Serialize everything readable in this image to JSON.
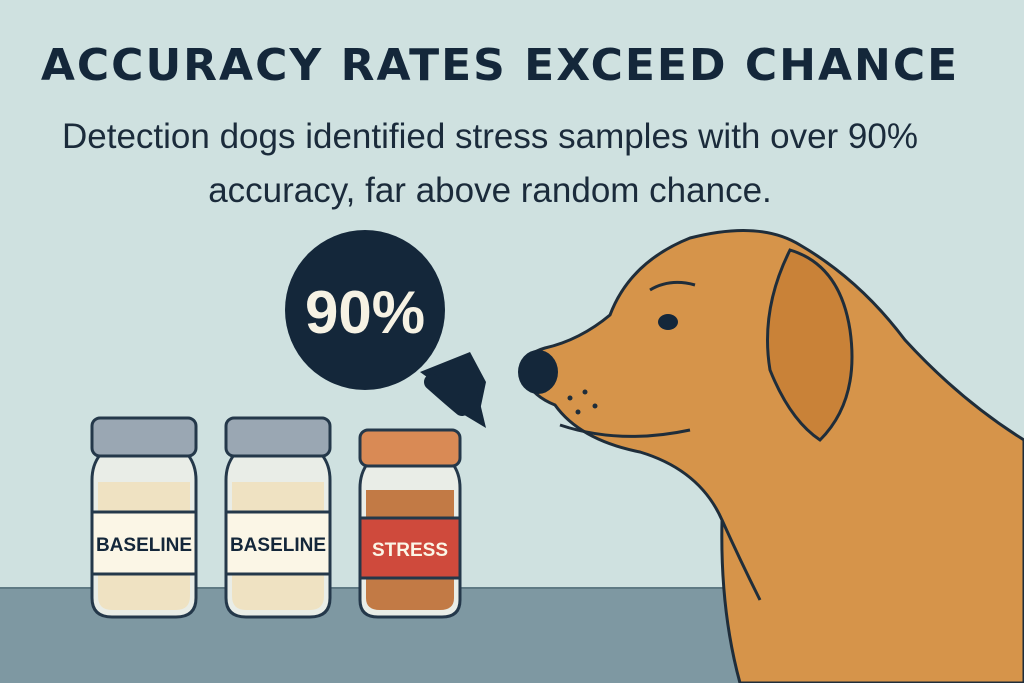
{
  "heading": {
    "title": "ACCURACY RATES EXCEED CHANCE",
    "subtitle": "Detection dogs identified stress samples with over 90% accuracy, far above random chance."
  },
  "callout": {
    "value": "90%"
  },
  "jars": [
    {
      "label": "BASELINE"
    },
    {
      "label": "BASELINE"
    },
    {
      "label": "STRESS"
    }
  ],
  "colors": {
    "background": "#cfe1e0",
    "table": "#7e98a2",
    "callout": "#14273a",
    "dog": "#d6944a",
    "stress_label": "#cf4a3c",
    "baseline_label": "#fbf6e6"
  }
}
